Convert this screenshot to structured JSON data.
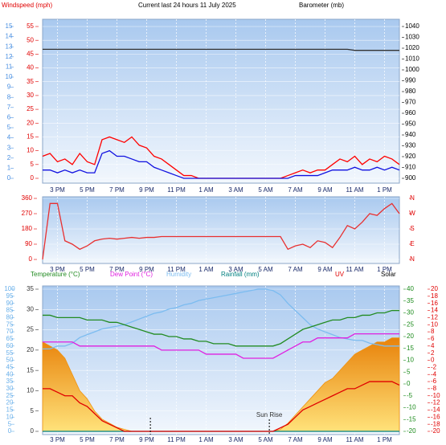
{
  "chart_data": [
    {
      "type": "line",
      "title": "Current last 24 hours 11 July 2025",
      "categories": [
        null,
        null,
        "3 PM",
        null,
        null,
        null,
        "5 PM",
        null,
        null,
        null,
        "7 PM",
        null,
        null,
        null,
        "9 PM",
        null,
        null,
        null,
        "11 PM",
        null,
        null,
        null,
        "1 AM",
        null,
        null,
        null,
        "3 AM",
        null,
        null,
        null,
        "5 AM",
        null,
        null,
        null,
        "7 AM",
        null,
        null,
        null,
        "9 AM",
        null,
        null,
        null,
        "11 AM",
        null,
        null,
        null,
        "1 PM",
        null,
        null
      ],
      "grid": true,
      "axes": [
        {
          "label": "Windspeed (mph)",
          "color": "#e00000",
          "side": "left",
          "lim": [
            0,
            55
          ],
          "ticks": [
            0,
            5,
            10,
            15,
            20,
            25,
            30,
            35,
            40,
            45,
            50,
            55
          ]
        },
        {
          "label": "Barometer (mb)",
          "color": "#000000",
          "side": "right",
          "lim": [
            900,
            1040
          ],
          "ticks": [
            900,
            910,
            920,
            930,
            940,
            950,
            960,
            970,
            980,
            990,
            1000,
            1010,
            1020,
            1030,
            1040
          ]
        },
        {
          "color": "#4a90e2",
          "side": "left",
          "lim": [
            0,
            15
          ],
          "ticks": [
            0,
            1,
            2,
            3,
            4,
            5,
            6,
            7,
            8,
            9,
            10,
            11,
            12,
            13,
            14,
            15
          ]
        }
      ],
      "series": [
        {
          "color": "#ff0000",
          "axis": 0,
          "values": [
            8,
            9,
            6,
            7,
            5,
            9,
            6,
            5,
            14,
            15,
            14,
            13,
            15,
            12,
            11,
            8,
            7,
            5,
            3,
            1,
            1,
            0,
            0,
            0,
            0,
            0,
            0,
            0,
            0,
            0,
            0,
            0,
            0,
            1,
            2,
            3,
            2,
            3,
            3,
            5,
            7,
            6,
            8,
            5,
            7,
            6,
            8,
            7,
            5
          ]
        },
        {
          "color": "#1010e0",
          "axis": 0,
          "values": [
            3,
            3,
            2,
            3,
            2,
            3,
            2,
            2,
            9,
            10,
            8,
            8,
            7,
            6,
            6,
            4,
            3,
            2,
            1,
            0,
            0,
            0,
            0,
            0,
            0,
            0,
            0,
            0,
            0,
            0,
            0,
            0,
            0,
            0,
            1,
            1,
            1,
            1,
            2,
            3,
            3,
            3,
            4,
            3,
            3,
            4,
            3,
            4,
            3
          ]
        },
        {
          "color": "#333333",
          "axis": 1,
          "values": [
            1019,
            1019,
            1019,
            1019,
            1019,
            1019,
            1019,
            1019,
            1019,
            1019,
            1019,
            1019,
            1019,
            1019,
            1019,
            1019,
            1019,
            1019,
            1019,
            1019,
            1019,
            1019,
            1019,
            1019,
            1019,
            1019,
            1019,
            1019,
            1019,
            1019,
            1019,
            1019,
            1019,
            1019,
            1019,
            1019,
            1019,
            1019,
            1019,
            1019,
            1019,
            1019,
            1018,
            1018,
            1018,
            1018,
            1018,
            1018,
            1018
          ]
        }
      ]
    },
    {
      "type": "line",
      "categories": [
        null,
        null,
        "3 PM",
        null,
        null,
        null,
        "5 PM",
        null,
        null,
        null,
        "7 PM",
        null,
        null,
        null,
        "9 PM",
        null,
        null,
        null,
        "11 PM",
        null,
        null,
        null,
        "1 AM",
        null,
        null,
        null,
        "3 AM",
        null,
        null,
        null,
        "5 AM",
        null,
        null,
        null,
        "7 AM",
        null,
        null,
        null,
        "9 AM",
        null,
        null,
        null,
        "11 AM",
        null,
        null,
        null,
        "1 PM",
        null,
        null
      ],
      "grid": true,
      "axes": [
        {
          "color": "#e00000",
          "side": "left",
          "lim": [
            0,
            360
          ],
          "ticks": [
            0,
            90,
            180,
            270,
            360
          ]
        },
        {
          "color": "#e00000",
          "side": "right",
          "lim": [
            0,
            360
          ],
          "ticks": [
            {
              "value": 0,
              "label": "N"
            },
            {
              "value": 90,
              "label": "E"
            },
            {
              "value": 180,
              "label": "S"
            },
            {
              "value": 270,
              "label": "W"
            },
            {
              "value": 360,
              "label": "N"
            }
          ]
        }
      ],
      "series": [
        {
          "color": "#e83030",
          "axis": 0,
          "values": [
            0,
            330,
            330,
            110,
            90,
            60,
            80,
            110,
            120,
            125,
            120,
            125,
            130,
            125,
            130,
            130,
            135,
            135,
            135,
            135,
            135,
            135,
            135,
            135,
            135,
            135,
            135,
            135,
            135,
            135,
            135,
            135,
            135,
            60,
            80,
            90,
            70,
            110,
            100,
            70,
            130,
            200,
            180,
            220,
            270,
            260,
            300,
            330,
            270
          ]
        }
      ]
    },
    {
      "type": "line",
      "annotation": "Sun Rise",
      "categories": [
        null,
        null,
        "3 PM",
        null,
        null,
        null,
        "5 PM",
        null,
        null,
        null,
        "7 PM",
        null,
        null,
        null,
        "9 PM",
        null,
        null,
        null,
        "11 PM",
        null,
        null,
        null,
        "1 AM",
        null,
        null,
        null,
        "3 AM",
        null,
        null,
        null,
        "5 AM",
        null,
        null,
        null,
        "7 AM",
        null,
        null,
        null,
        "9 AM",
        null,
        null,
        null,
        "11 AM",
        null,
        null,
        null,
        "1 PM",
        null,
        null
      ],
      "grid": true,
      "axes": [
        {
          "color": "#333333",
          "side": "left",
          "lim": [
            0,
            35
          ],
          "ticks": [
            0,
            5,
            10,
            15,
            20,
            25,
            30,
            35
          ]
        },
        {
          "color": "#1a8a1a",
          "side": "right",
          "lim": [
            -20,
            40
          ],
          "ticks": [
            -20,
            -15,
            -10,
            -5,
            0,
            5,
            10,
            15,
            20,
            25,
            30,
            35,
            40
          ]
        },
        {
          "color": "#6ab0ea",
          "side": "left",
          "lim": [
            0,
            100
          ],
          "ticks": [
            0,
            5,
            10,
            15,
            20,
            25,
            30,
            35,
            40,
            45,
            50,
            55,
            60,
            65,
            70,
            75,
            80,
            85,
            90,
            95,
            100
          ]
        },
        {
          "color": "#e00000",
          "side": "right",
          "lim": [
            -20,
            20
          ],
          "ticks": [
            -20,
            -18,
            -16,
            -14,
            -12,
            -10,
            -8,
            -6,
            -4,
            -2,
            0,
            2,
            4,
            6,
            8,
            10,
            12,
            14,
            16,
            18,
            20
          ]
        }
      ],
      "series": [
        {
          "name": "Solar",
          "color": "#f0920e",
          "axis": 0,
          "style": "area",
          "values": [
            22,
            21,
            20,
            18,
            14,
            10,
            8,
            5,
            3,
            2,
            1,
            0.5,
            0,
            0,
            0,
            0,
            0,
            0,
            0,
            0,
            0,
            0,
            0,
            0,
            0,
            0,
            0,
            0,
            0,
            0,
            0,
            0,
            0.5,
            2,
            4,
            6,
            8,
            10,
            12,
            13,
            15,
            17,
            19,
            20,
            21,
            22,
            22,
            23,
            23
          ]
        },
        {
          "name": "Humidity",
          "color": "#7cbcf0",
          "axis": 2,
          "values": [
            58,
            58,
            60,
            60,
            62,
            66,
            68,
            70,
            72,
            73,
            74,
            75,
            77,
            79,
            81,
            83,
            84,
            86,
            87,
            89,
            90,
            92,
            93,
            94,
            95,
            96,
            97,
            98,
            99,
            100,
            100,
            99,
            96,
            90,
            85,
            80,
            75,
            72,
            70,
            68,
            66,
            65,
            64,
            64,
            62,
            61,
            60,
            60,
            60
          ]
        },
        {
          "name": "Rainfall (mm)",
          "color": "#008080",
          "axis": 0,
          "values": [
            0,
            0,
            0,
            0,
            0,
            0,
            0,
            0,
            0,
            0,
            0,
            0,
            0,
            0,
            0,
            0,
            0,
            0,
            0,
            0,
            0,
            0,
            0,
            0,
            0,
            0,
            0,
            0,
            0,
            0,
            0,
            0,
            0,
            0,
            0,
            0,
            0,
            0,
            0,
            0,
            0,
            0,
            0,
            0,
            0,
            0,
            0,
            0,
            0
          ]
        },
        {
          "name": "Dew Point (°C)",
          "color": "#e020e0",
          "axis": 0,
          "values": [
            22,
            22,
            22,
            22,
            22,
            21,
            21,
            21,
            21,
            21,
            21,
            21,
            21,
            21,
            21,
            21,
            20,
            20,
            20,
            20,
            20,
            20,
            19,
            19,
            19,
            19,
            19,
            18,
            18,
            18,
            18,
            18,
            19,
            20,
            21,
            22,
            22,
            23,
            23,
            23,
            23,
            23,
            24,
            24,
            24,
            24,
            24,
            24,
            24
          ]
        },
        {
          "name": "Temperature (°C)",
          "color": "#228b22",
          "axis": 1,
          "values": [
            29,
            29,
            28,
            28,
            28,
            28,
            27,
            27,
            27,
            26,
            26,
            25,
            24,
            23,
            22,
            21,
            21,
            20,
            20,
            19,
            19,
            18,
            18,
            17,
            17,
            17,
            16,
            16,
            16,
            16,
            16,
            16,
            17,
            19,
            21,
            23,
            24,
            25,
            26,
            27,
            27,
            28,
            28,
            29,
            29,
            30,
            30,
            31,
            31
          ]
        },
        {
          "name": "UV",
          "color": "#e00000",
          "axis": 3,
          "values": [
            -8,
            -8,
            -9,
            -10,
            -10,
            -12,
            -13,
            -15,
            -17,
            -18,
            -19,
            -20,
            -20,
            -20,
            -20,
            -20,
            -20,
            -20,
            -20,
            -20,
            -20,
            -20,
            -20,
            -20,
            -20,
            -20,
            -20,
            -20,
            -20,
            -20,
            -20,
            -20,
            -19,
            -18,
            -16,
            -14,
            -13,
            -12,
            -11,
            -10,
            -9,
            -8,
            -8,
            -7,
            -6,
            -6,
            -6,
            -6,
            -7
          ]
        }
      ]
    }
  ]
}
